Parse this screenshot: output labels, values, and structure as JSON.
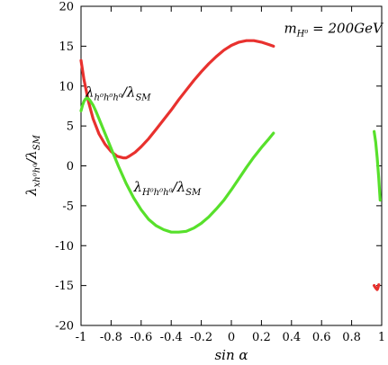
{
  "chart_data": {
    "type": "line",
    "title": "",
    "xlabel": "sin α",
    "ylabel": "λ_{xh⁰h⁰}/λ_{SM}",
    "ylabel_parts": {
      "main": "λ",
      "sub": "xh⁰h⁰",
      "mid": "/λ",
      "sub2": "SM"
    },
    "xlim": [
      -1,
      1
    ],
    "ylim": [
      -20,
      20
    ],
    "xticks": [
      -1,
      -0.8,
      -0.6,
      -0.4,
      -0.2,
      0,
      0.2,
      0.4,
      0.6,
      0.8,
      1
    ],
    "xtick_labels": [
      "-1",
      "-0.8",
      "-0.6",
      "-0.4",
      "-0.2",
      "0",
      "0.2",
      "0.4",
      "0.6",
      "0.8",
      "1"
    ],
    "yticks": [
      -20,
      -15,
      -10,
      -5,
      0,
      5,
      10,
      15,
      20
    ],
    "ytick_labels": [
      "-20",
      "-15",
      "-10",
      "-5",
      "0",
      "5",
      "10",
      "15",
      "20"
    ],
    "grid": false,
    "legend": "none",
    "annotations": [
      {
        "id": "mass",
        "parts": [
          {
            "t": "m"
          },
          {
            "t": "H⁰",
            "sub": true
          },
          {
            "t": " = 200GeV"
          }
        ],
        "x": 0.35,
        "y": 16.7
      },
      {
        "id": "red-label",
        "parts": [
          {
            "t": "λ"
          },
          {
            "t": "h⁰h⁰h⁰",
            "sub": true
          },
          {
            "t": "/λ"
          },
          {
            "t": "SM",
            "sub": true
          }
        ],
        "x": -0.97,
        "y": 8.7
      },
      {
        "id": "green-label",
        "parts": [
          {
            "t": "λ"
          },
          {
            "t": "H⁰h⁰h⁰",
            "sub": true
          },
          {
            "t": "/λ"
          },
          {
            "t": "SM",
            "sub": true
          }
        ],
        "x": -0.65,
        "y": -3.2
      }
    ],
    "series": [
      {
        "color": "#e8312e",
        "segments": [
          {
            "x": [
              -1.0,
              -0.98,
              -0.95,
              -0.92,
              -0.88,
              -0.84,
              -0.8,
              -0.76,
              -0.72,
              -0.7,
              -0.68,
              -0.64,
              -0.6,
              -0.55,
              -0.5,
              -0.45,
              -0.4,
              -0.35,
              -0.3,
              -0.25,
              -0.2,
              -0.15,
              -0.1,
              -0.05,
              0.0,
              0.05,
              0.1,
              0.15,
              0.2,
              0.25,
              0.28
            ],
            "y": [
              13.2,
              10.8,
              8.0,
              5.9,
              4.0,
              2.7,
              1.8,
              1.2,
              1.0,
              1.0,
              1.2,
              1.7,
              2.4,
              3.4,
              4.6,
              5.8,
              7.0,
              8.3,
              9.5,
              10.7,
              11.8,
              12.8,
              13.7,
              14.5,
              15.1,
              15.5,
              15.7,
              15.7,
              15.5,
              15.2,
              15.0
            ]
          },
          {
            "x": [
              0.95,
              0.96,
              0.97,
              0.975,
              0.98
            ],
            "y": [
              -15.0,
              -15.3,
              -15.5,
              -15.3,
              -14.9
            ]
          }
        ]
      },
      {
        "color": "#57e02b",
        "segments": [
          {
            "x": [
              -1.0,
              -0.99,
              -0.98,
              -0.97,
              -0.96,
              -0.95,
              -0.94,
              -0.92,
              -0.9,
              -0.88,
              -0.85,
              -0.8,
              -0.75,
              -0.7,
              -0.65,
              -0.6,
              -0.55,
              -0.5,
              -0.45,
              -0.4,
              -0.35,
              -0.3,
              -0.25,
              -0.2,
              -0.15,
              -0.1,
              -0.05,
              0.0,
              0.05,
              0.1,
              0.15,
              0.2,
              0.25,
              0.28
            ],
            "y": [
              6.9,
              7.6,
              8.1,
              8.4,
              8.5,
              8.4,
              8.2,
              7.6,
              6.8,
              5.9,
              4.5,
              2.2,
              -0.1,
              -2.2,
              -4.0,
              -5.5,
              -6.7,
              -7.5,
              -8.0,
              -8.3,
              -8.3,
              -8.2,
              -7.8,
              -7.2,
              -6.4,
              -5.4,
              -4.3,
              -3.0,
              -1.6,
              -0.2,
              1.1,
              2.3,
              3.4,
              4.1
            ]
          },
          {
            "x": [
              0.95,
              0.96,
              0.97,
              0.98,
              0.99
            ],
            "y": [
              4.3,
              3.0,
              1.0,
              -1.5,
              -4.3
            ]
          }
        ]
      }
    ]
  }
}
